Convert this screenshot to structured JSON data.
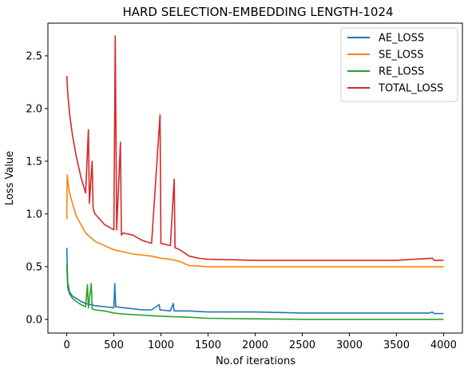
{
  "chart_data": {
    "type": "line",
    "title": "HARD SELECTION-EMBEDDING LENGTH-1024",
    "xlabel": "No.of iterations",
    "ylabel": "Loss Value",
    "xlim": [
      -200,
      4200
    ],
    "ylim": [
      -0.13,
      2.81
    ],
    "xticks": [
      "0",
      "500",
      "1000",
      "1500",
      "2000",
      "2500",
      "3000",
      "3500",
      "4000"
    ],
    "xtick_values": [
      0,
      500,
      1000,
      1500,
      2000,
      2500,
      3000,
      3500,
      4000
    ],
    "yticks": [
      "0.0",
      "0.5",
      "1.0",
      "1.5",
      "2.0",
      "2.5"
    ],
    "ytick_values": [
      0.0,
      0.5,
      1.0,
      1.5,
      2.0,
      2.5
    ],
    "grid": false,
    "legend_position": "top-right",
    "series": [
      {
        "name": "AE_LOSS",
        "color": "#1f77b4",
        "points": [
          [
            0,
            0.68
          ],
          [
            10,
            0.35
          ],
          [
            30,
            0.26
          ],
          [
            60,
            0.22
          ],
          [
            100,
            0.2
          ],
          [
            150,
            0.17
          ],
          [
            200,
            0.15
          ],
          [
            300,
            0.13
          ],
          [
            400,
            0.12
          ],
          [
            500,
            0.11
          ],
          [
            510,
            0.34
          ],
          [
            520,
            0.12
          ],
          [
            600,
            0.11
          ],
          [
            700,
            0.1
          ],
          [
            800,
            0.09
          ],
          [
            900,
            0.09
          ],
          [
            980,
            0.14
          ],
          [
            990,
            0.09
          ],
          [
            1100,
            0.08
          ],
          [
            1130,
            0.15
          ],
          [
            1140,
            0.08
          ],
          [
            1200,
            0.08
          ],
          [
            1300,
            0.08
          ],
          [
            1500,
            0.07
          ],
          [
            2000,
            0.07
          ],
          [
            2500,
            0.06
          ],
          [
            3000,
            0.06
          ],
          [
            3500,
            0.06
          ],
          [
            3850,
            0.06
          ],
          [
            3880,
            0.07
          ],
          [
            3900,
            0.055
          ],
          [
            4000,
            0.055
          ]
        ]
      },
      {
        "name": "SE_LOSS",
        "color": "#ff7f0e",
        "points": [
          [
            0,
            0.95
          ],
          [
            5,
            1.37
          ],
          [
            15,
            1.28
          ],
          [
            30,
            1.2
          ],
          [
            60,
            1.1
          ],
          [
            100,
            0.98
          ],
          [
            150,
            0.9
          ],
          [
            200,
            0.82
          ],
          [
            250,
            0.78
          ],
          [
            300,
            0.74
          ],
          [
            400,
            0.7
          ],
          [
            500,
            0.66
          ],
          [
            600,
            0.64
          ],
          [
            700,
            0.62
          ],
          [
            800,
            0.61
          ],
          [
            900,
            0.6
          ],
          [
            1000,
            0.58
          ],
          [
            1100,
            0.57
          ],
          [
            1200,
            0.55
          ],
          [
            1300,
            0.51
          ],
          [
            1500,
            0.5
          ],
          [
            2000,
            0.5
          ],
          [
            2500,
            0.5
          ],
          [
            3000,
            0.5
          ],
          [
            3500,
            0.5
          ],
          [
            4000,
            0.5
          ]
        ]
      },
      {
        "name": "RE_LOSS",
        "color": "#2ca02c",
        "points": [
          [
            0,
            0.52
          ],
          [
            10,
            0.3
          ],
          [
            30,
            0.24
          ],
          [
            60,
            0.2
          ],
          [
            100,
            0.17
          ],
          [
            150,
            0.14
          ],
          [
            200,
            0.12
          ],
          [
            220,
            0.33
          ],
          [
            230,
            0.11
          ],
          [
            260,
            0.34
          ],
          [
            270,
            0.1
          ],
          [
            300,
            0.09
          ],
          [
            400,
            0.08
          ],
          [
            500,
            0.06
          ],
          [
            600,
            0.05
          ],
          [
            800,
            0.04
          ],
          [
            1000,
            0.03
          ],
          [
            1300,
            0.02
          ],
          [
            1500,
            0.01
          ],
          [
            2000,
            0.005
          ],
          [
            2500,
            0.0
          ],
          [
            3000,
            0.0
          ],
          [
            3500,
            0.0
          ],
          [
            4000,
            0.0
          ]
        ]
      },
      {
        "name": "TOTAL_LOSS",
        "color": "#d62728",
        "points": [
          [
            0,
            2.31
          ],
          [
            10,
            2.15
          ],
          [
            30,
            1.95
          ],
          [
            60,
            1.75
          ],
          [
            100,
            1.55
          ],
          [
            150,
            1.35
          ],
          [
            200,
            1.2
          ],
          [
            230,
            1.8
          ],
          [
            240,
            1.1
          ],
          [
            270,
            1.5
          ],
          [
            280,
            1.05
          ],
          [
            300,
            1.0
          ],
          [
            400,
            0.9
          ],
          [
            500,
            0.85
          ],
          [
            515,
            2.69
          ],
          [
            530,
            0.85
          ],
          [
            570,
            1.68
          ],
          [
            580,
            0.8
          ],
          [
            600,
            0.82
          ],
          [
            700,
            0.8
          ],
          [
            800,
            0.75
          ],
          [
            900,
            0.72
          ],
          [
            990,
            1.94
          ],
          [
            1000,
            0.72
          ],
          [
            1100,
            0.7
          ],
          [
            1140,
            1.33
          ],
          [
            1150,
            0.68
          ],
          [
            1200,
            0.66
          ],
          [
            1300,
            0.6
          ],
          [
            1400,
            0.58
          ],
          [
            1500,
            0.57
          ],
          [
            2000,
            0.56
          ],
          [
            2500,
            0.56
          ],
          [
            3000,
            0.56
          ],
          [
            3500,
            0.56
          ],
          [
            3880,
            0.58
          ],
          [
            3900,
            0.56
          ],
          [
            4000,
            0.56
          ]
        ]
      }
    ]
  }
}
